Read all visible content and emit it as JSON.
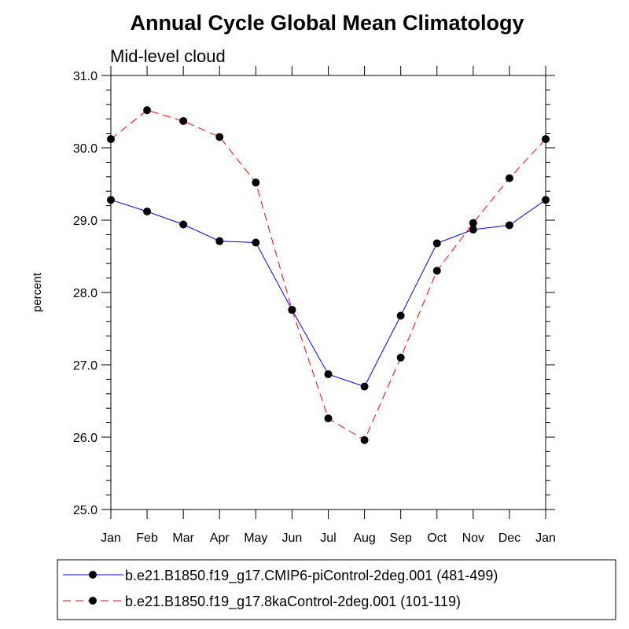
{
  "chart_data": {
    "type": "line",
    "title": "Annual Cycle Global Mean Climatology",
    "subtitle": "Mid-level cloud",
    "xlabel": "",
    "ylabel": "percent",
    "categories": [
      "Jan",
      "Feb",
      "Mar",
      "Apr",
      "May",
      "Jun",
      "Jul",
      "Aug",
      "Sep",
      "Oct",
      "Nov",
      "Dec",
      "Jan"
    ],
    "ylim": [
      25.0,
      31.0
    ],
    "yticks": [
      "25.0",
      "26.0",
      "27.0",
      "28.0",
      "29.0",
      "30.0",
      "31.0"
    ],
    "grid": false,
    "legend_position": "bottom",
    "series": [
      {
        "name": "b.e21.B1850.f19_g17.CMIP6-piControl-2deg.001 (481-499)",
        "color": "#0000ff",
        "dash": "solid",
        "marker": "dot",
        "values": [
          29.28,
          29.12,
          28.94,
          28.71,
          28.69,
          27.76,
          26.87,
          26.7,
          27.68,
          28.68,
          28.87,
          28.93,
          29.28
        ]
      },
      {
        "name": "b.e21.B1850.f19_g17.8kaControl-2deg.001 (101-119)",
        "color": "#ff0000",
        "dash": "dashed",
        "marker": "dot",
        "values": [
          30.12,
          30.52,
          30.37,
          30.15,
          29.52,
          27.76,
          26.26,
          25.96,
          27.1,
          28.3,
          28.96,
          29.58,
          30.12
        ]
      }
    ]
  }
}
